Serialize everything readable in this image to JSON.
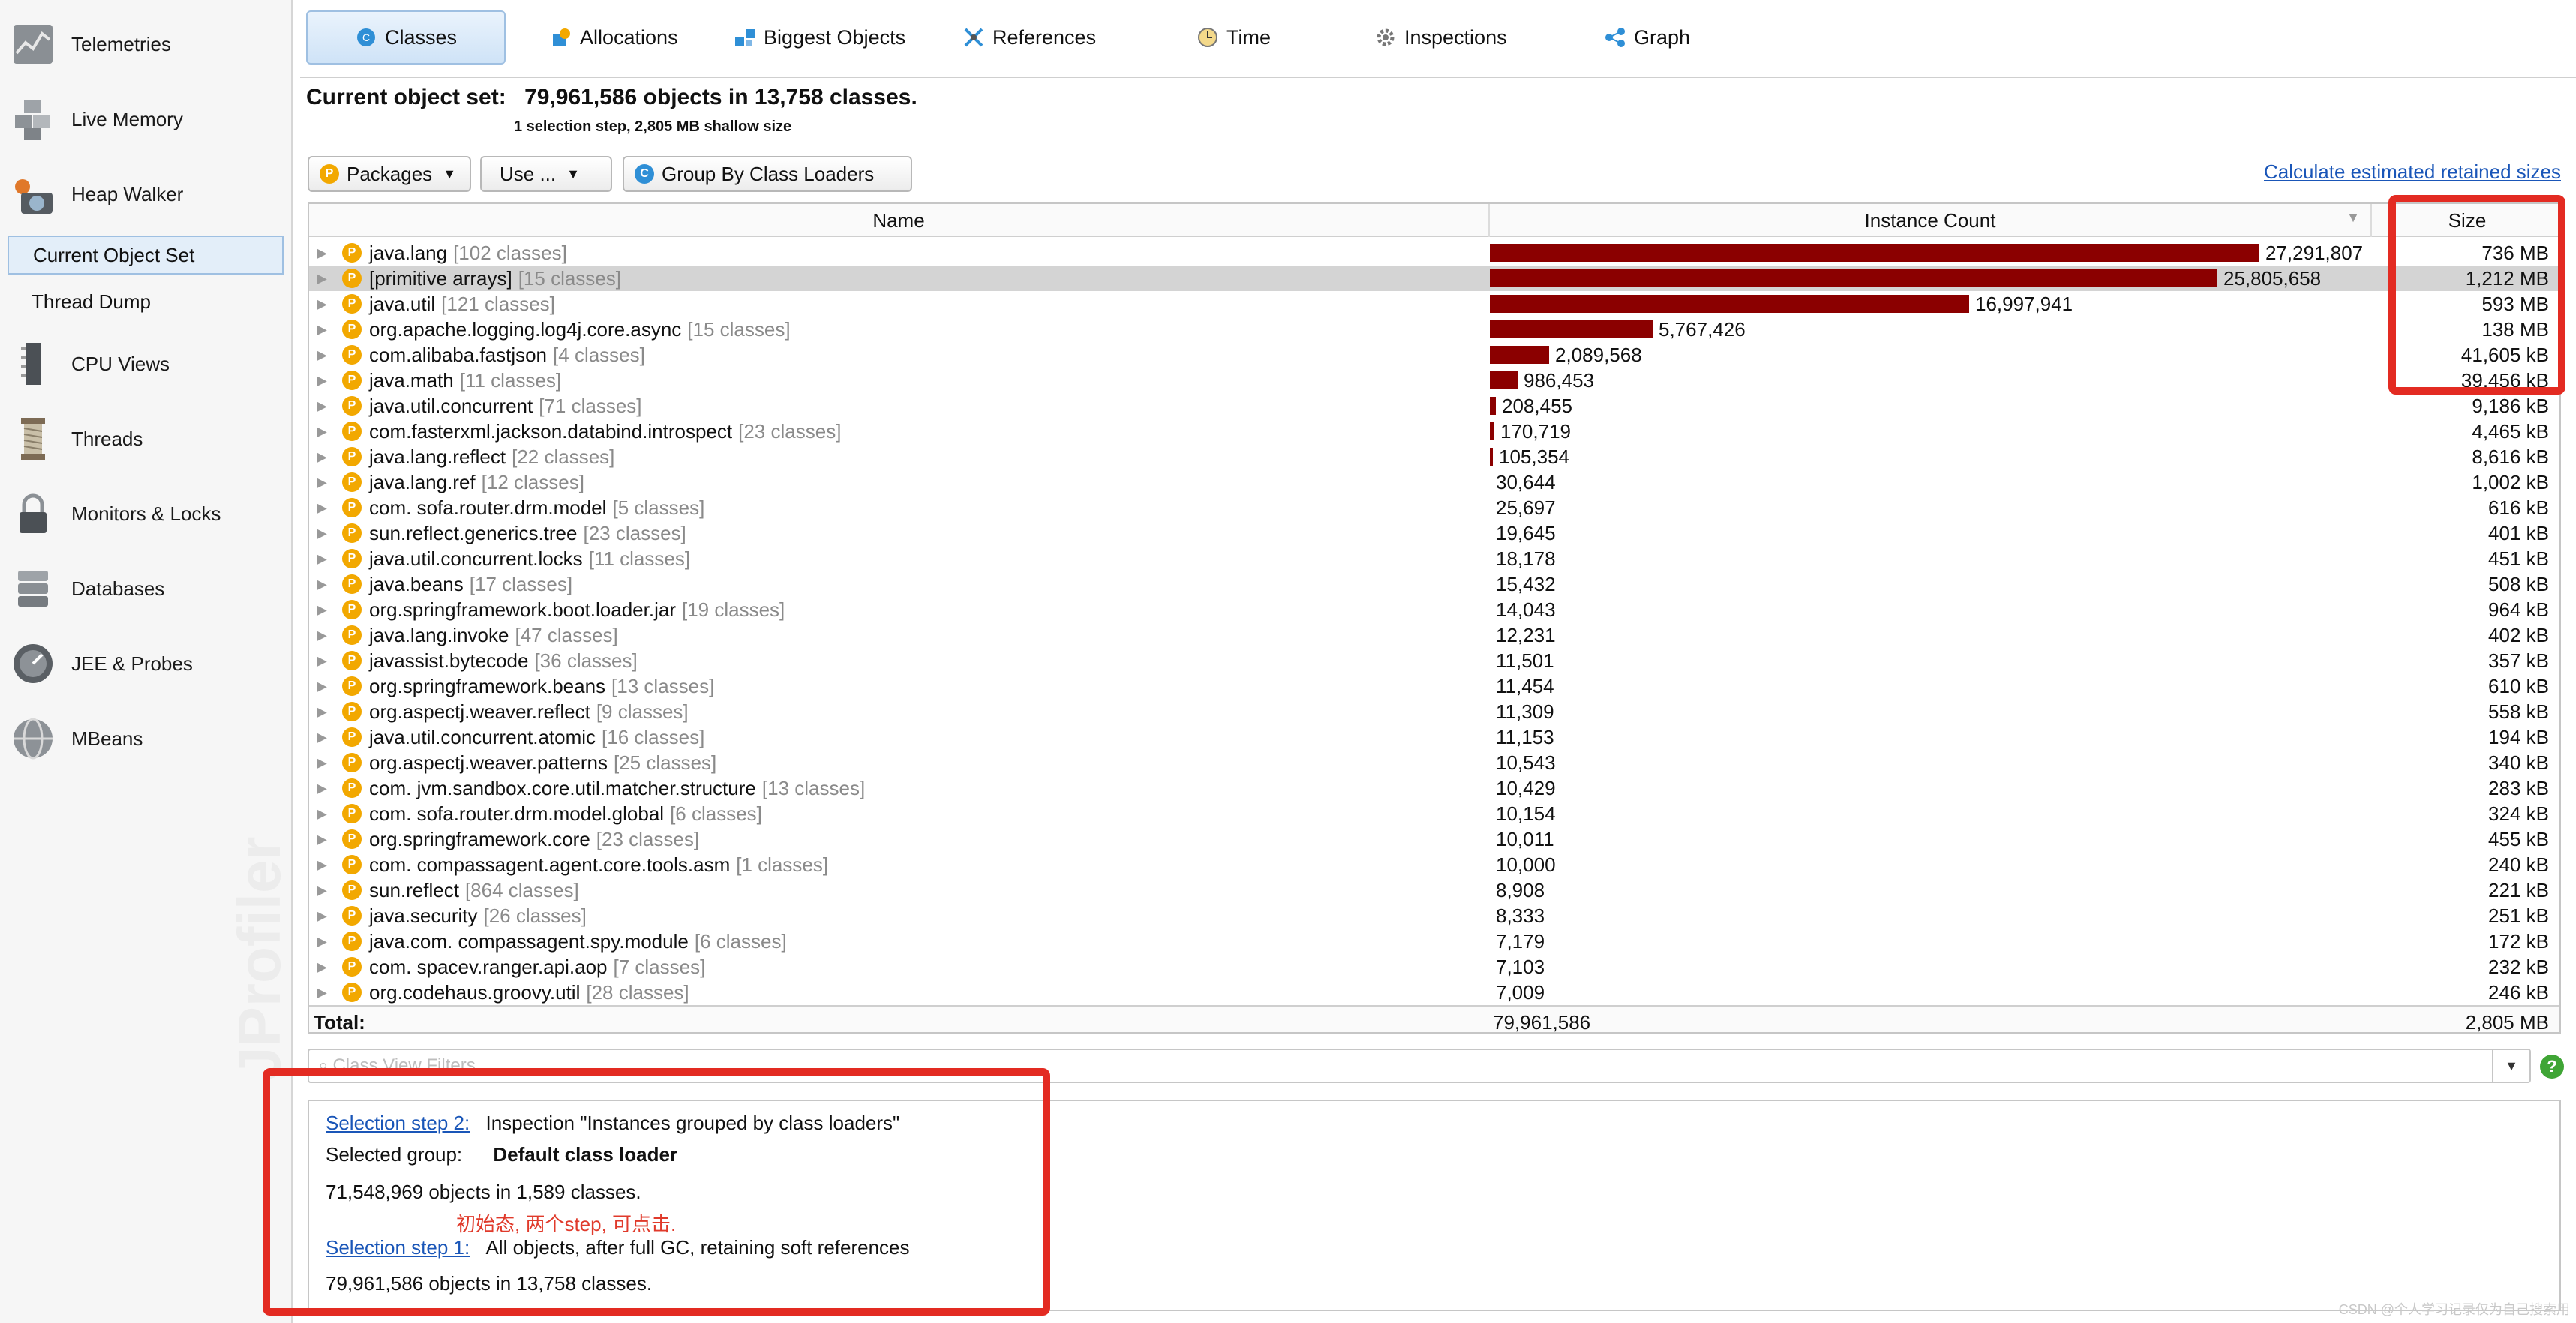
{
  "sidebar": {
    "items": [
      {
        "label": "Telemetries",
        "icon": "telemetries-icon"
      },
      {
        "label": "Live Memory",
        "icon": "live-memory-icon"
      },
      {
        "label": "Heap Walker",
        "icon": "heap-walker-icon"
      },
      {
        "label": "CPU Views",
        "icon": "cpu-views-icon"
      },
      {
        "label": "Threads",
        "icon": "threads-icon"
      },
      {
        "label": "Monitors & Locks",
        "icon": "monitors-locks-icon"
      },
      {
        "label": "Databases",
        "icon": "databases-icon"
      },
      {
        "label": "JEE & Probes",
        "icon": "jee-probes-icon"
      },
      {
        "label": "MBeans",
        "icon": "mbeans-icon"
      }
    ],
    "subitems": [
      {
        "label": "Current Object Set",
        "selected": true
      },
      {
        "label": "Thread Dump",
        "selected": false
      }
    ]
  },
  "tabs": [
    {
      "label": "Classes",
      "icon": "classes-icon",
      "active": true
    },
    {
      "label": "Allocations",
      "icon": "allocations-icon"
    },
    {
      "label": "Biggest Objects",
      "icon": "biggest-objects-icon"
    },
    {
      "label": "References",
      "icon": "references-icon"
    },
    {
      "label": "Time",
      "icon": "time-icon"
    },
    {
      "label": "Inspections",
      "icon": "inspections-icon"
    },
    {
      "label": "Graph",
      "icon": "graph-icon"
    }
  ],
  "header": {
    "current_label": "Current object set:",
    "current_value": "79,961,586 objects in 13,758 classes.",
    "sub": "1 selection step, 2,805 MB shallow size"
  },
  "toolbar": {
    "packages": "Packages",
    "use": "Use ...",
    "group": "Group By Class Loaders",
    "calc_link": "Calculate estimated retained sizes"
  },
  "table": {
    "columns": [
      "Name",
      "Instance Count",
      "Size"
    ],
    "rows": [
      {
        "name": "java.lang",
        "classes": "[102 classes]",
        "count": "27,291,807",
        "count_value": 27291807,
        "size": "736 MB"
      },
      {
        "name": "[primitive arrays]",
        "classes": "[15 classes]",
        "count": "25,805,658",
        "count_value": 25805658,
        "size": "1,212 MB",
        "selected": true
      },
      {
        "name": "java.util",
        "classes": "[121 classes]",
        "count": "16,997,941",
        "count_value": 16997941,
        "size": "593 MB"
      },
      {
        "name": "org.apache.logging.log4j.core.async",
        "classes": "[15 classes]",
        "count": "5,767,426",
        "count_value": 5767426,
        "size": "138 MB"
      },
      {
        "name": "com.alibaba.fastjson",
        "classes": "[4 classes]",
        "count": "2,089,568",
        "count_value": 2089568,
        "size": "41,605 kB"
      },
      {
        "name": "java.math",
        "classes": "[11 classes]",
        "count": "986,453",
        "count_value": 986453,
        "size": "39,456 kB"
      },
      {
        "name": "java.util.concurrent",
        "classes": "[71 classes]",
        "count": "208,455",
        "count_value": 208455,
        "size": "9,186 kB"
      },
      {
        "name": "com.fasterxml.jackson.databind.introspect",
        "classes": "[23 classes]",
        "count": "170,719",
        "count_value": 170719,
        "size": "4,465 kB"
      },
      {
        "name": "java.lang.reflect",
        "classes": "[22 classes]",
        "count": "105,354",
        "count_value": 105354,
        "size": "8,616 kB"
      },
      {
        "name": "java.lang.ref",
        "classes": "[12 classes]",
        "count": "30,644",
        "count_value": 30644,
        "size": "1,002 kB"
      },
      {
        "name": "com.     sofa.router.drm.model",
        "classes": "[5 classes]",
        "count": "25,697",
        "count_value": 25697,
        "size": "616 kB",
        "redacted": true
      },
      {
        "name": "sun.reflect.generics.tree",
        "classes": "[23 classes]",
        "count": "19,645",
        "count_value": 19645,
        "size": "401 kB"
      },
      {
        "name": "java.util.concurrent.locks",
        "classes": "[11 classes]",
        "count": "18,178",
        "count_value": 18178,
        "size": "451 kB"
      },
      {
        "name": "java.beans",
        "classes": "[17 classes]",
        "count": "15,432",
        "count_value": 15432,
        "size": "508 kB"
      },
      {
        "name": "org.springframework.boot.loader.jar",
        "classes": "[19 classes]",
        "count": "14,043",
        "count_value": 14043,
        "size": "964 kB"
      },
      {
        "name": "java.lang.invoke",
        "classes": "[47 classes]",
        "count": "12,231",
        "count_value": 12231,
        "size": "402 kB"
      },
      {
        "name": "javassist.bytecode",
        "classes": "[36 classes]",
        "count": "11,501",
        "count_value": 11501,
        "size": "357 kB"
      },
      {
        "name": "org.springframework.beans",
        "classes": "[13 classes]",
        "count": "11,454",
        "count_value": 11454,
        "size": "610 kB"
      },
      {
        "name": "org.aspectj.weaver.reflect",
        "classes": "[9 classes]",
        "count": "11,309",
        "count_value": 11309,
        "size": "558 kB"
      },
      {
        "name": "java.util.concurrent.atomic",
        "classes": "[16 classes]",
        "count": "11,153",
        "count_value": 11153,
        "size": "194 kB"
      },
      {
        "name": "org.aspectj.weaver.patterns",
        "classes": "[25 classes]",
        "count": "10,543",
        "count_value": 10543,
        "size": "340 kB"
      },
      {
        "name": "com.     jvm.sandbox.core.util.matcher.structure",
        "classes": "[13 classes]",
        "count": "10,429",
        "count_value": 10429,
        "size": "283 kB",
        "redacted": true
      },
      {
        "name": "com.     sofa.router.drm.model.global",
        "classes": "[6 classes]",
        "count": "10,154",
        "count_value": 10154,
        "size": "324 kB",
        "redacted": true
      },
      {
        "name": "org.springframework.core",
        "classes": "[23 classes]",
        "count": "10,011",
        "count_value": 10011,
        "size": "455 kB"
      },
      {
        "name": "com.     compassagent.agent.core.tools.asm",
        "classes": "[1 classes]",
        "count": "10,000",
        "count_value": 10000,
        "size": "240 kB",
        "redacted": true
      },
      {
        "name": "sun.reflect",
        "classes": "[864 classes]",
        "count": "8,908",
        "count_value": 8908,
        "size": "221 kB"
      },
      {
        "name": "java.security",
        "classes": "[26 classes]",
        "count": "8,333",
        "count_value": 8333,
        "size": "251 kB"
      },
      {
        "name": "java.com.     compassagent.spy.module",
        "classes": "[6 classes]",
        "count": "7,179",
        "count_value": 7179,
        "size": "172 kB",
        "redacted": true
      },
      {
        "name": "com.     spacev.ranger.api.aop",
        "classes": "[7 classes]",
        "count": "7,103",
        "count_value": 7103,
        "size": "232 kB",
        "redacted": true
      },
      {
        "name": "org.codehaus.groovy.util",
        "classes": "[28 classes]",
        "count": "7,009",
        "count_value": 7009,
        "size": "246 kB"
      }
    ],
    "total_label": "Total:",
    "total_count": "79,961,586",
    "total_size": "2,805 MB"
  },
  "filter": {
    "placeholder": "Class View Filters"
  },
  "info": {
    "step2_link": "Selection step 2:",
    "step2_text": "Inspection \"Instances grouped by class loaders\"",
    "group_label": "Selected group:",
    "group_value": "Default class loader",
    "step2_objects": "71,548,969 objects in 1,589 classes.",
    "note": "初始态, 两个step, 可点击.",
    "step1_link": "Selection step 1:",
    "step1_text": "All objects, after full GC, retaining soft references",
    "step1_objects": "79,961,586 objects in 13,758 classes."
  },
  "watermark": "JProfiler",
  "credit": "CSDN @个人学习记录仅为自己搜索用",
  "colors": {
    "bar": "#8b0000",
    "highlight": "#e32b22",
    "link": "#1a56b8",
    "selection": "#d4d4d4"
  }
}
